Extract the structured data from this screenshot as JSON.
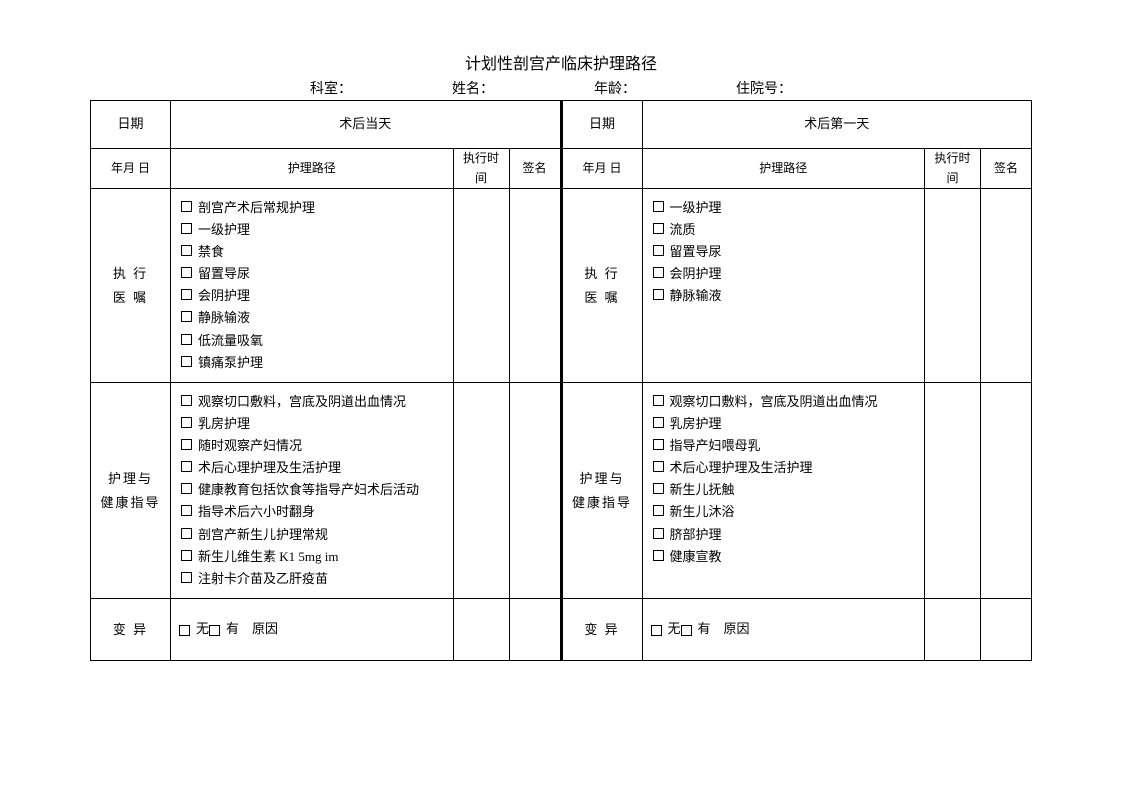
{
  "title": "计划性剖宫产临床护理路径",
  "info": {
    "dept_label": "科室：",
    "name_label": "姓名：",
    "age_label": "年龄：",
    "admission_label": "住院号："
  },
  "left": {
    "header_date": "日期",
    "header_day": "术后当天",
    "sub_date": "年月 日",
    "sub_path": "护理路径",
    "sub_time": "执行时间",
    "sub_sign": "签名",
    "sections": [
      {
        "label": "执 行\n医 嘱",
        "items": [
          "剖宫产术后常规护理",
          "一级护理",
          "禁食",
          "留置导尿",
          "会阴护理",
          "静脉输液",
          "低流量吸氧",
          "镇痛泵护理"
        ]
      },
      {
        "label": "护理与\n健康指导",
        "items": [
          "观察切口敷料，宫底及阴道出血情况",
          "乳房护理",
          "随时观察产妇情况",
          "术后心理护理及生活护理",
          "健康教育包括饮食等指导产妇术后活动",
          "指导术后六小时翻身",
          "剖宫产新生儿护理常规",
          "新生儿维生素 K1 5mg im",
          "注射卡介苗及乙肝疫苗"
        ],
        "wrap_item_index": 4
      },
      {
        "label": "变 异",
        "variant_none": "无",
        "variant_has": "有　原因"
      }
    ]
  },
  "right": {
    "header_date": "日期",
    "header_day": "术后第一天",
    "sub_date": "年月 日",
    "sub_path": "护理路径",
    "sub_time": "执行时间",
    "sub_sign": "签名",
    "sections": [
      {
        "label": "执 行\n医 嘱",
        "items": [
          "一级护理",
          "流质",
          "留置导尿",
          "会阴护理",
          "静脉输液"
        ]
      },
      {
        "label": "护理与\n健康指导",
        "items": [
          "观察切口敷料，宫底及阴道出血情况",
          "乳房护理",
          "指导产妇喂母乳",
          "术后心理护理及生活护理",
          "新生儿抚触",
          "新生儿沐浴",
          "脐部护理",
          "健康宣教"
        ]
      },
      {
        "label": "变 异",
        "variant_none": "无",
        "variant_has": "有　原因"
      }
    ]
  },
  "colors": {
    "border": "#000000",
    "background": "#ffffff",
    "text": "#000000"
  }
}
